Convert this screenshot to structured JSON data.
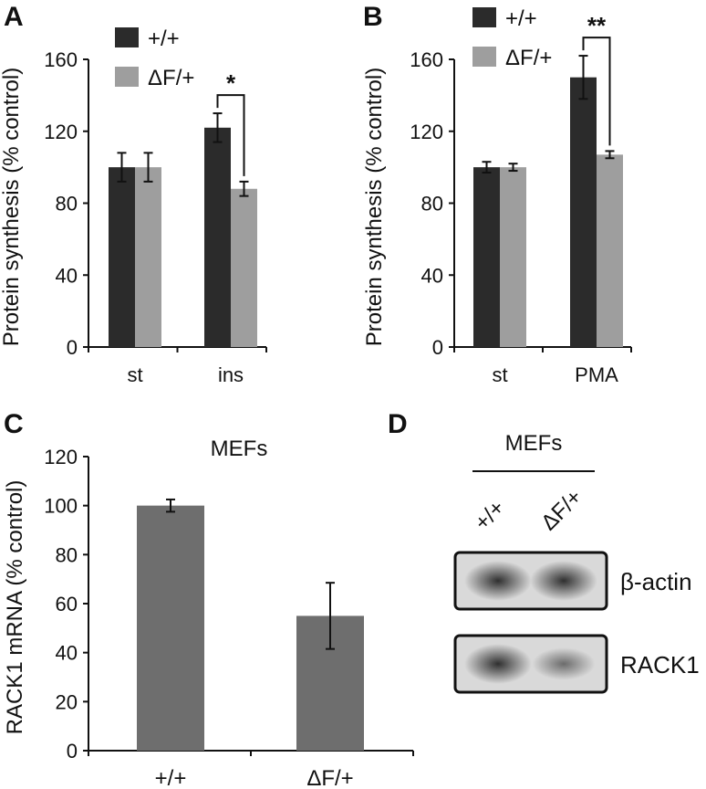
{
  "panels": {
    "A": "A",
    "B": "B",
    "C": "C",
    "D": "D"
  },
  "chart_data": [
    {
      "panel": "A",
      "type": "bar",
      "ylabel": "Protein synthesis (% control)",
      "ylim": [
        0,
        160
      ],
      "yticks": [
        0,
        40,
        80,
        120,
        160
      ],
      "categories": [
        "st",
        "ins"
      ],
      "series": [
        {
          "name": "+/+",
          "color": "#2b2b2b",
          "values": [
            100,
            122
          ],
          "errors": [
            8,
            8
          ]
        },
        {
          "name": "ΔF/+",
          "color": "#9e9e9e",
          "values": [
            100,
            88
          ],
          "errors": [
            8,
            4
          ]
        }
      ],
      "significance": [
        {
          "category": "ins",
          "label": "*"
        }
      ],
      "legend": "top-left"
    },
    {
      "panel": "B",
      "type": "bar",
      "ylabel": "Protein synthesis (% control)",
      "ylim": [
        0,
        160
      ],
      "yticks": [
        0,
        40,
        80,
        120,
        160
      ],
      "categories": [
        "st",
        "PMA"
      ],
      "series": [
        {
          "name": "+/+",
          "color": "#2b2b2b",
          "values": [
            100,
            150
          ],
          "errors": [
            3,
            12
          ]
        },
        {
          "name": "ΔF/+",
          "color": "#9e9e9e",
          "values": [
            100,
            107
          ],
          "errors": [
            2,
            2
          ]
        }
      ],
      "significance": [
        {
          "category": "PMA",
          "label": "**"
        }
      ],
      "legend": "top-left"
    },
    {
      "panel": "C",
      "type": "bar",
      "title": "MEFs",
      "ylabel": "RACK1 mRNA (% control)",
      "ylim": [
        0,
        120
      ],
      "yticks": [
        0,
        20,
        40,
        60,
        80,
        100,
        120
      ],
      "categories": [
        "+/+",
        "ΔF/+"
      ],
      "series": [
        {
          "color": "#6e6e6e",
          "values": [
            100,
            55
          ],
          "errors": [
            2.5,
            13.5
          ]
        }
      ]
    }
  ],
  "blot": {
    "title": "MEFs",
    "lanes": [
      "+/+",
      "ΔF/+"
    ],
    "rows": [
      {
        "label": "β-actin",
        "intensity": [
          0.85,
          0.85
        ]
      },
      {
        "label": "RACK1",
        "intensity": [
          0.85,
          0.55
        ]
      }
    ]
  }
}
